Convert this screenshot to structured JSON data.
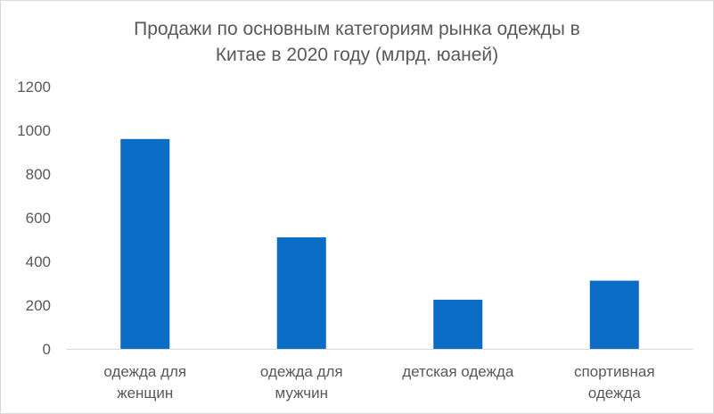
{
  "chart_data": {
    "type": "bar",
    "title_lines": [
      "Продажи по основным категориям рынка одежды в",
      "Китае в 2020 году (млрд. юаней)"
    ],
    "categories": [
      [
        "одежда для",
        "женщин"
      ],
      [
        "одежда для",
        "мужчин"
      ],
      [
        "детская одежда"
      ],
      [
        "спортивная",
        "одежда"
      ]
    ],
    "values": [
      960,
      510,
      225,
      312
    ],
    "ylim": [
      0,
      1200
    ],
    "yticks": [
      0,
      200,
      400,
      600,
      800,
      1000,
      1200
    ],
    "grid": false,
    "bar_color": "#0a6cc4",
    "axis_color": "#d9d9d9"
  }
}
